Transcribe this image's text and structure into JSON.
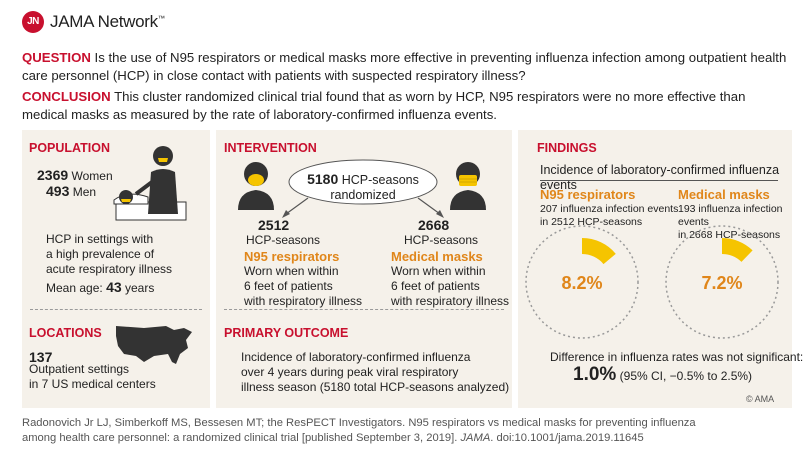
{
  "header": {
    "logo_text": "JN",
    "brand": "JAMA Network",
    "brand_mark": "™"
  },
  "question": {
    "label": "QUESTION",
    "text": " Is the use of N95 respirators or medical masks more effective in preventing influenza infection among outpatient health care personnel (HCP) in close contact with patients with suspected respiratory illness?"
  },
  "conclusion": {
    "label": "CONCLUSION",
    "text": " This cluster randomized clinical trial found that as worn by HCP, N95 respirators were no more effective than medical masks as measured by the rate of laboratory-confirmed influenza events."
  },
  "population": {
    "title": "POPULATION",
    "women_count": "2369",
    "women_label": "Women",
    "men_count": "493",
    "men_label": "Men",
    "setting_lines": [
      "HCP in settings with",
      "a high prevalence of",
      "acute respiratory illness"
    ],
    "age_label": "Mean age:",
    "age_value": "43",
    "age_unit": "years"
  },
  "locations": {
    "title": "LOCATIONS",
    "count": "137",
    "lines": [
      "Outpatient settings",
      "in 7 US medical centers"
    ]
  },
  "intervention": {
    "title": "INTERVENTION",
    "total_count": "5180",
    "total_label_1": "HCP-seasons",
    "total_label_2": "randomized",
    "arm_n95": {
      "count": "2512",
      "unit": "HCP-seasons",
      "name": "N95 respirators",
      "lines": [
        "Worn when within",
        "6 feet of patients",
        "with respiratory illness"
      ]
    },
    "arm_mask": {
      "count": "2668",
      "unit": "HCP-seasons",
      "name": "Medical masks",
      "lines": [
        "Worn when within",
        "6 feet of patients",
        "with respiratory illness"
      ]
    }
  },
  "outcome": {
    "title": "PRIMARY OUTCOME",
    "lines": [
      "Incidence of laboratory-confirmed influenza",
      "over 4 years during peak viral respiratory",
      "illness season (5180 total HCP-seasons analyzed)"
    ]
  },
  "findings": {
    "title": "FINDINGS",
    "subtitle": "Incidence of laboratory-confirmed influenza events",
    "n95": {
      "name": "N95 respirators",
      "line1": "207 influenza infection events",
      "line2": "in 2512 HCP-seasons",
      "pct_label": "8.2%",
      "fraction": 0.082
    },
    "mask": {
      "name": "Medical masks",
      "line1": "193 influenza infection events",
      "line2": "in 2668 HCP-seasons",
      "pct_label": "7.2%",
      "fraction": 0.072
    },
    "difference_text": "Difference in influenza rates was not significant:",
    "difference_value": "1.0%",
    "difference_ci": "(95% CI, −0.5% to 2.5%)",
    "copyright": "© AMA"
  },
  "citation": {
    "line1": "Radonovich Jr LJ, Simberkoff MS, Bessesen MT; the ResPECT Investigators. N95 respirators vs medical masks for preventing influenza",
    "line2a": "among health care personnel: a randomized clinical trial [published September 3, 2019]. ",
    "journal": "JAMA",
    "line2b": ". doi:10.1001/jama.2019.11645"
  },
  "colors": {
    "accent": "#c8102e",
    "orange": "#e0861a",
    "mask_yellow": "#f5c400",
    "panel": "#f5f1ea"
  }
}
